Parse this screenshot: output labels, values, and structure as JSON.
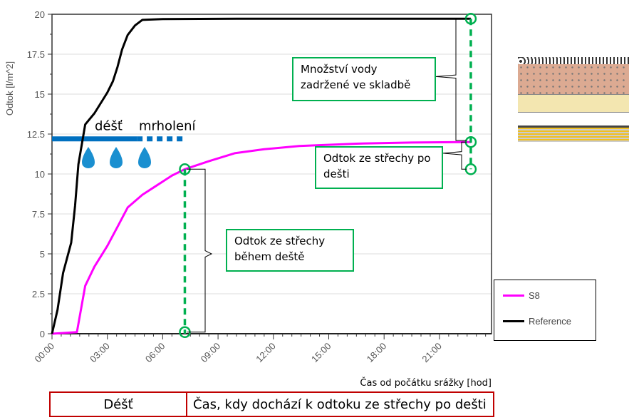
{
  "chart_data": {
    "type": "line",
    "ylabel": "Odtok   [l/m^2]",
    "xlabel": "Čas od počátku srážky [hod]",
    "ylim": [
      0,
      20
    ],
    "xlim_hours": [
      0,
      23.8
    ],
    "yticks": [
      "0",
      "2.5",
      "5",
      "7.5",
      "10",
      "12.5",
      "15",
      "17.5",
      "20"
    ],
    "xticks": [
      "00:00",
      "03:00",
      "06:00",
      "09:00",
      "12:00",
      "15:00",
      "18:00",
      "21:00"
    ],
    "grid": "horizontal",
    "legend_placement": "bottom-right",
    "series": [
      {
        "name": "S8",
        "color": "#ff00ff",
        "x": [
          0,
          1.35,
          1.8,
          2.3,
          3.0,
          3.6,
          4.1,
          4.9,
          5.7,
          6.5,
          7.2,
          8.5,
          9.9,
          11.5,
          13.4,
          16.5,
          19.5,
          22.7
        ],
        "y": [
          0,
          0.1,
          3.0,
          4.2,
          5.5,
          6.8,
          7.9,
          8.7,
          9.3,
          9.9,
          10.3,
          10.8,
          11.3,
          11.55,
          11.75,
          11.9,
          11.97,
          12.0
        ]
      },
      {
        "name": "Reference",
        "color": "#000000",
        "x": [
          0,
          0.3,
          0.6,
          1.04,
          1.25,
          1.43,
          1.8,
          2.3,
          3.0,
          3.3,
          3.55,
          3.8,
          4.1,
          4.5,
          4.9,
          6,
          10,
          22.7
        ],
        "y": [
          0,
          1.5,
          3.8,
          5.7,
          8,
          10.6,
          13.1,
          13.8,
          15.1,
          15.8,
          16.7,
          17.8,
          18.7,
          19.3,
          19.65,
          19.7,
          19.72,
          19.72
        ]
      }
    ],
    "rain_bar": {
      "level": 12.2,
      "rain_end_h": 4.6,
      "drizzle_end_h": 7.2,
      "color": "#0070c0"
    },
    "annotations": {
      "rain": "déšť",
      "drizzle": "mrholení",
      "retained": "Množství vody\nzadržené ve skladbě",
      "after_rain": "Odtok ze střechy po\ndešti",
      "during_rain": "Odtok ze střechy\nběhem deště",
      "marker_time_h": [
        7.2,
        22.7
      ]
    }
  },
  "bottom_bar": {
    "rain": "Déšť",
    "after": "Čas, kdy dochází k odtoku ze střechy po dešti"
  }
}
